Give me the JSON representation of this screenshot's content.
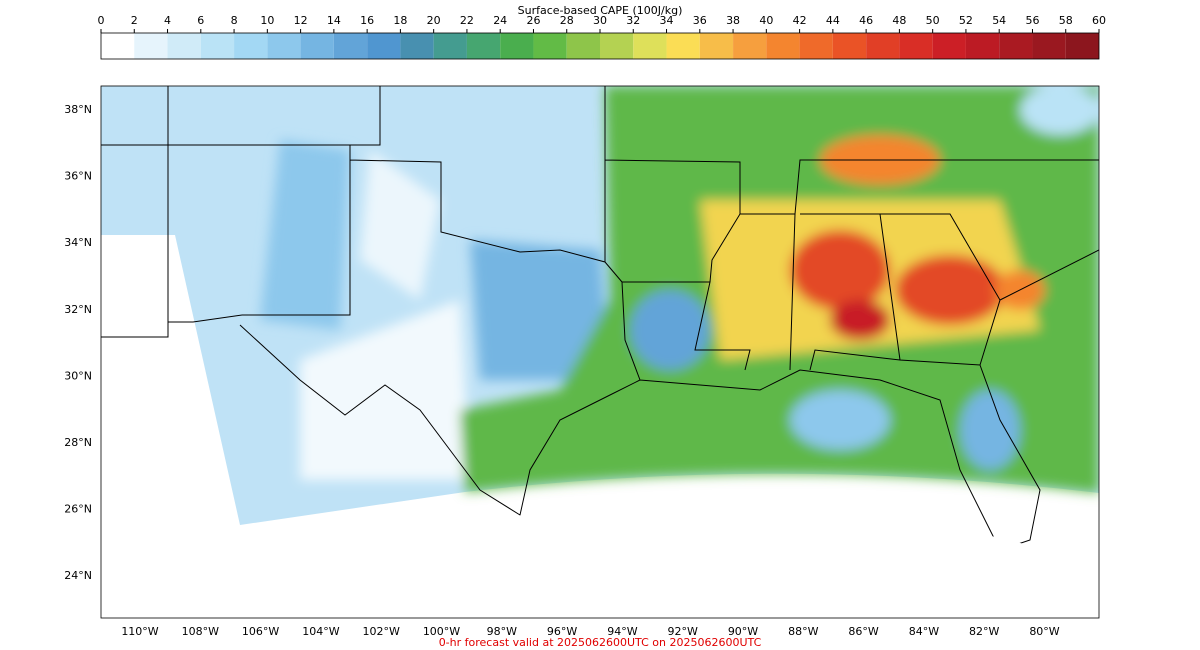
{
  "colorbar": {
    "title": "Surface-based CAPE (100J/kg)",
    "ticks": [
      0,
      2,
      4,
      6,
      8,
      10,
      12,
      14,
      16,
      18,
      20,
      22,
      24,
      26,
      28,
      30,
      32,
      34,
      36,
      38,
      40,
      42,
      44,
      46,
      48,
      50,
      52,
      54,
      56,
      58,
      60
    ],
    "colors": [
      "#ffffff",
      "#e6f4fc",
      "#d0ebf8",
      "#bae3f6",
      "#a3d8f4",
      "#8dc8ec",
      "#75b5e2",
      "#62a4d8",
      "#5096d0",
      "#4890b0",
      "#449c90",
      "#46a670",
      "#4aae4e",
      "#62bb46",
      "#8ec54a",
      "#b4d252",
      "#dee05a",
      "#fbdd55",
      "#f7bd49",
      "#f69f3e",
      "#f4852f",
      "#ef6a2a",
      "#ea5326",
      "#e13f26",
      "#d92e26",
      "#cc1f26",
      "#bc1b24",
      "#aa1a22",
      "#9a1820",
      "#8c161e"
    ]
  },
  "map": {
    "lat_labels": [
      "38°N",
      "36°N",
      "34°N",
      "32°N",
      "30°N",
      "28°N",
      "26°N",
      "24°N"
    ],
    "lon_labels": [
      "110°W",
      "108°W",
      "106°W",
      "104°W",
      "102°W",
      "100°W",
      "98°W",
      "96°W",
      "94°W",
      "92°W",
      "90°W",
      "88°W",
      "86°W",
      "84°W",
      "82°W",
      "80°W"
    ]
  },
  "footer": "0-hr forecast valid at 2025062600UTC on 2025062600UTC"
}
